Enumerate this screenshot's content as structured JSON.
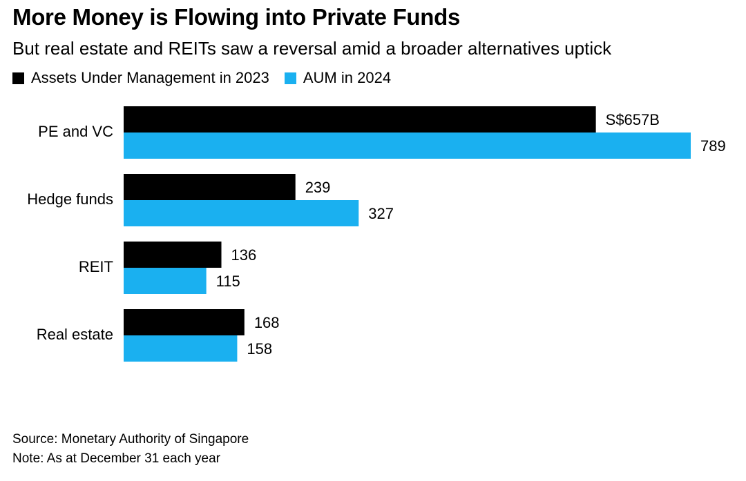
{
  "header": {
    "title": "More Money is Flowing into Private Funds",
    "subtitle": "But real estate and REITs saw a reversal amid a broader alternatives uptick"
  },
  "footer": {
    "source": "Source: Monetary Authority of Singapore",
    "note": "Note: As at December 31 each year"
  },
  "colors": {
    "series_2023": "#000000",
    "series_2024": "#1ab0f0"
  },
  "chart_data": {
    "type": "bar",
    "orientation": "horizontal",
    "categories": [
      "PE and VC",
      "Hedge funds",
      "REIT",
      "Real estate"
    ],
    "series": [
      {
        "name": "Assets Under Management in 2023",
        "values": [
          657,
          239,
          136,
          168
        ],
        "labels": [
          "S$657B",
          "239",
          "136",
          "168"
        ]
      },
      {
        "name": "AUM in 2024",
        "values": [
          789,
          327,
          115,
          158
        ],
        "labels": [
          "789",
          "327",
          "115",
          "158"
        ]
      }
    ],
    "title": "More Money is Flowing into Private Funds",
    "subtitle": "But real estate and REITs saw a reversal amid a broader alternatives uptick",
    "unit": "S$ billion",
    "xlim": [
      0,
      789
    ],
    "grid": false,
    "legend": "top-left"
  }
}
